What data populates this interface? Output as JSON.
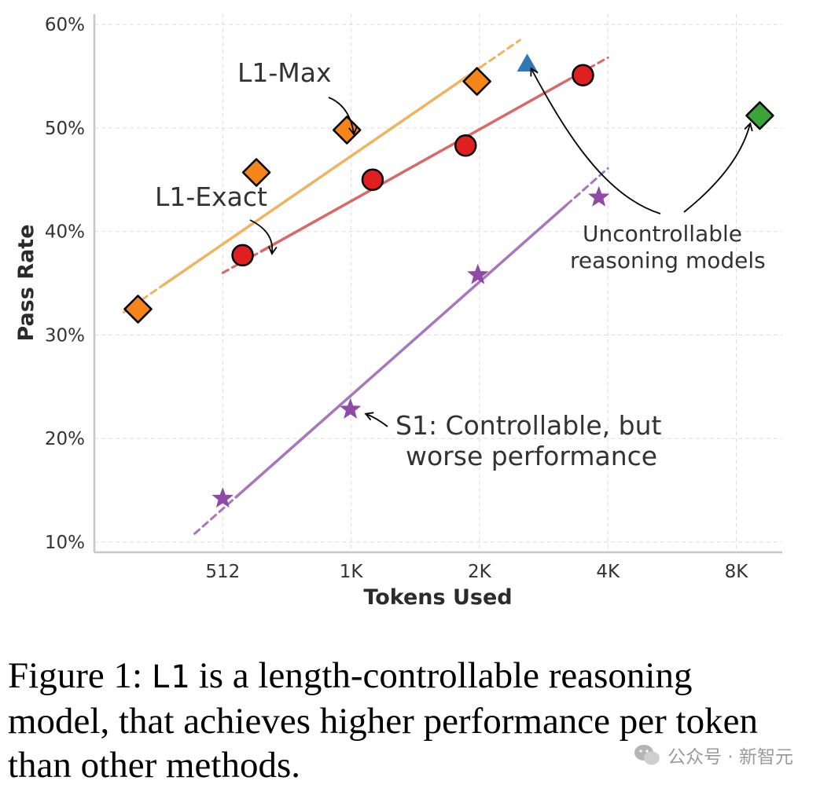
{
  "chart_data": {
    "type": "scatter",
    "xlabel": "Tokens Used",
    "ylabel": "Pass Rate",
    "x_scale": "log2",
    "xlim": [
      256,
      10500
    ],
    "ylim": [
      9,
      61
    ],
    "xticks": [
      {
        "value": 512,
        "label": "512"
      },
      {
        "value": 1024,
        "label": "1K"
      },
      {
        "value": 2048,
        "label": "2K"
      },
      {
        "value": 4096,
        "label": "4K"
      },
      {
        "value": 8192,
        "label": "8K"
      }
    ],
    "yticks": [
      {
        "value": 10,
        "label": "10%"
      },
      {
        "value": 20,
        "label": "20%"
      },
      {
        "value": 30,
        "label": "30%"
      },
      {
        "value": 40,
        "label": "40%"
      },
      {
        "value": 50,
        "label": "50%"
      },
      {
        "value": 60,
        "label": "60%"
      }
    ],
    "grid": true,
    "series": [
      {
        "name": "L1-Max",
        "marker": "diamond",
        "color": "#f58518",
        "points": [
          [
            324,
            32.5
          ],
          [
            614,
            45.7
          ],
          [
            1001,
            49.8
          ],
          [
            2020,
            54.5
          ]
        ],
        "trend": {
          "x": [
            300,
            2550
          ],
          "y": [
            32.2,
            58.5
          ],
          "color": "#f0b360"
        }
      },
      {
        "name": "L1-Exact",
        "marker": "circle",
        "color": "#e02020",
        "points": [
          [
            570,
            37.7
          ],
          [
            1150,
            45.0
          ],
          [
            1900,
            48.3
          ],
          [
            3580,
            55.1
          ]
        ],
        "trend": {
          "x": [
            512,
            4096
          ],
          "y": [
            36.0,
            56.8
          ],
          "color": "#d96868"
        }
      },
      {
        "name": "S1: Controllable, but worse performance",
        "marker": "star",
        "color": "#8e4ba6",
        "points": [
          [
            512,
            14.2
          ],
          [
            1020,
            22.8
          ],
          [
            2030,
            35.8
          ],
          [
            3900,
            43.3
          ]
        ],
        "trend": {
          "x": [
            440,
            4096
          ],
          "y": [
            10.8,
            46.1
          ],
          "color": "#a876bd"
        }
      },
      {
        "name": "Uncontrollable reasoning models",
        "marker": "mixed",
        "points": [
          {
            "x": 2650,
            "y": 56.2,
            "marker": "triangle",
            "color": "#2e78b5"
          },
          {
            "x": 9300,
            "y": 51.2,
            "marker": "diamond",
            "color": "#3aa33a"
          }
        ]
      }
    ],
    "annotations": {
      "l1_max": "L1-Max",
      "l1_exact": "L1-Exact",
      "s1_line1": "S1: Controllable, but",
      "s1_line2": "worse performance",
      "unc_line1": "Uncontrollable",
      "unc_line2": "reasoning models"
    }
  },
  "caption": {
    "prefix": "Figure 1: ",
    "mono": "L1",
    "rest": " is a length-controllable reasoning model, that achieves higher performance per token than other methods."
  },
  "watermark": {
    "text": "公众号 · 新智元"
  }
}
